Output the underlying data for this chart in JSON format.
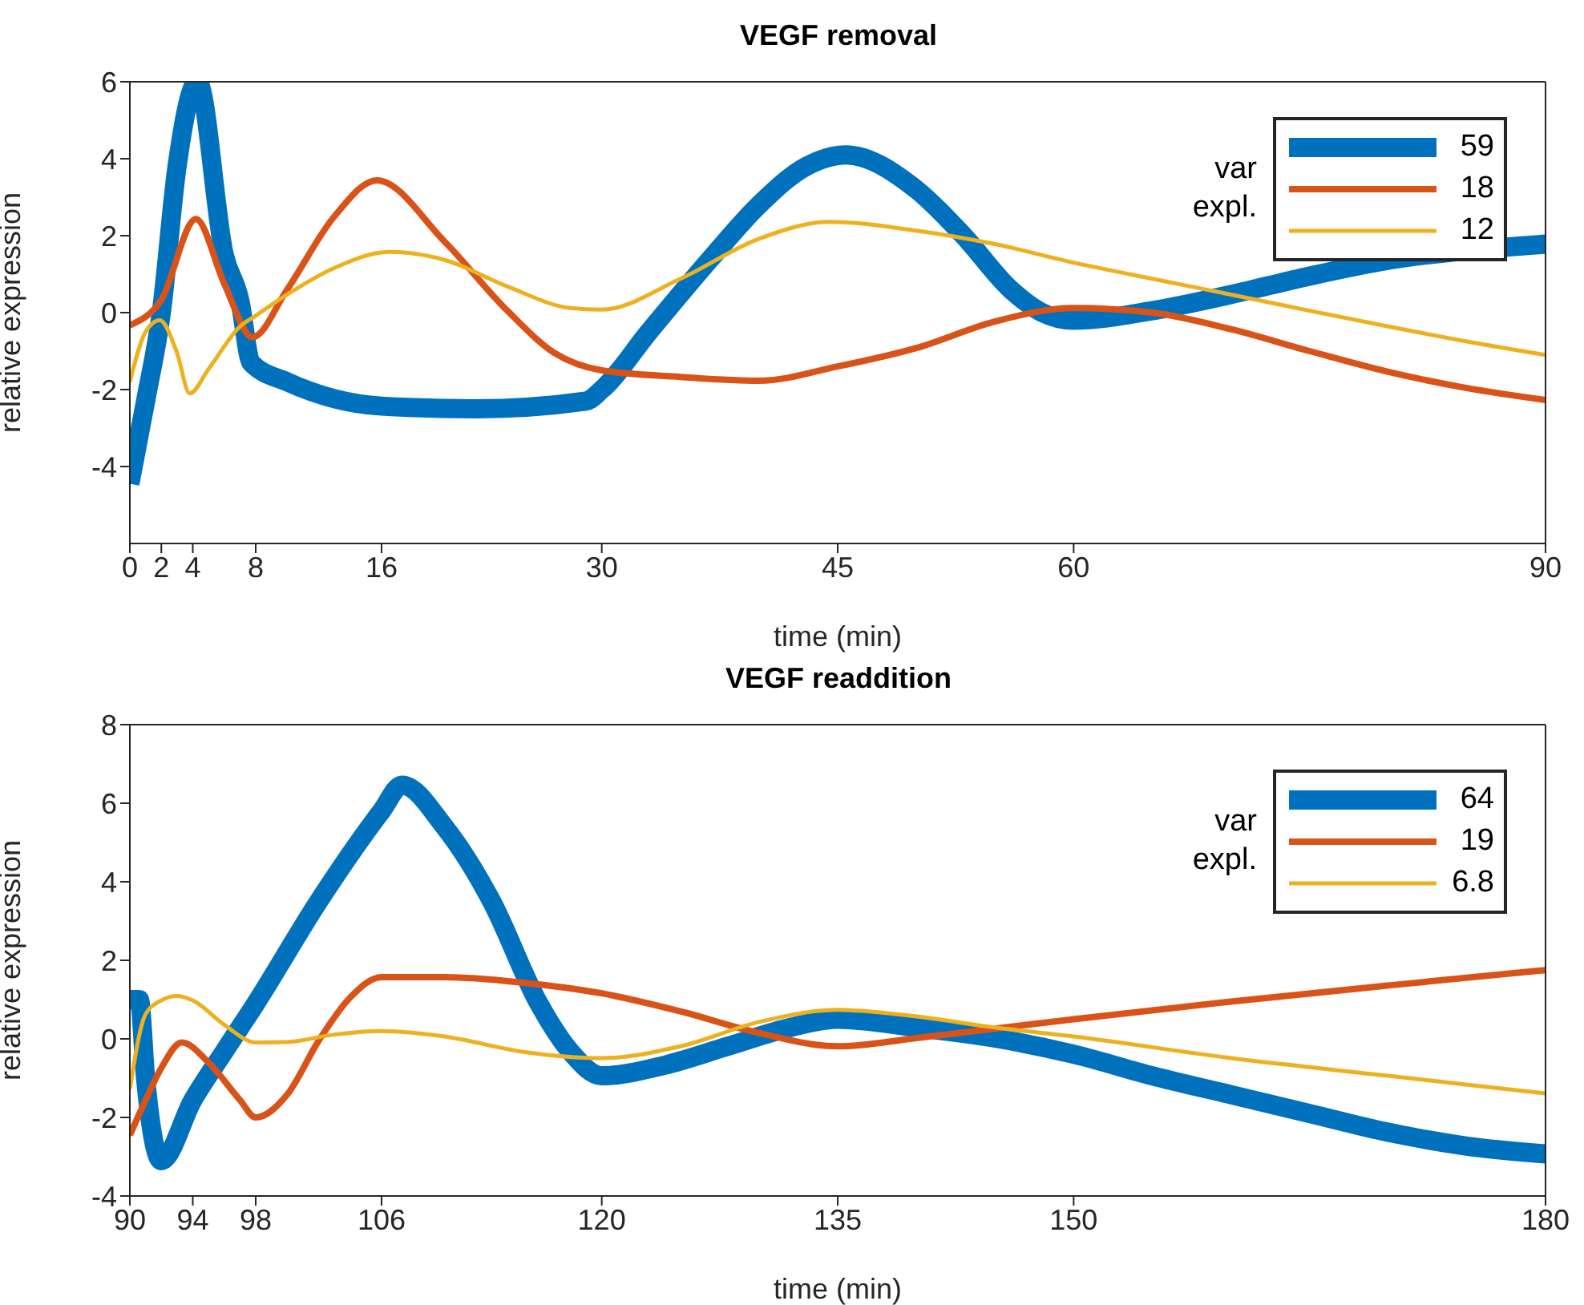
{
  "chart_data": [
    {
      "type": "line",
      "title": "VEGF removal",
      "xlabel": "time (min)",
      "ylabel": "relative expression",
      "legend_title": "var\nexpl.",
      "legend": "top right",
      "xlim": [
        0,
        90
      ],
      "xticks": [
        0,
        2,
        4,
        8,
        16,
        30,
        45,
        60,
        90
      ],
      "ylim": [
        -6,
        6
      ],
      "yticks": [
        -4,
        -2,
        0,
        2,
        4,
        6
      ],
      "series": [
        {
          "name": "59",
          "color": "#0072bd",
          "x": [
            0,
            1,
            2,
            3,
            4.3,
            6,
            7,
            7.7,
            10,
            16,
            22,
            29,
            30,
            33,
            37,
            40,
            43,
            45.5,
            50,
            53,
            56,
            58,
            60,
            65,
            70,
            75,
            80,
            88,
            90
          ],
          "values": [
            -4.45,
            -2.3,
            0,
            3.8,
            6,
            1.5,
            0.3,
            -1.3,
            -1.8,
            -2.43,
            -2.5,
            -2.3,
            -2.0,
            -0.5,
            1.44,
            2.8,
            3.8,
            4.1,
            3.2,
            2.0,
            0.6,
            0,
            -0.2,
            0.05,
            0.47,
            0.95,
            1.36,
            1.72,
            1.78
          ]
        },
        {
          "name": "18",
          "color": "#d95319",
          "x": [
            0,
            2,
            4.2,
            6,
            7.8,
            10,
            13,
            15.7,
            20,
            24,
            27,
            30,
            35,
            40,
            45,
            50,
            55,
            60,
            65,
            70,
            75,
            80,
            85,
            90
          ],
          "values": [
            -0.33,
            0.33,
            2.43,
            0.75,
            -0.64,
            0.6,
            2.5,
            3.44,
            1.85,
            0.05,
            -1.05,
            -1.5,
            -1.67,
            -1.77,
            -1.4,
            -0.92,
            -0.23,
            0.12,
            0,
            -0.43,
            -1,
            -1.54,
            -1.96,
            -2.27
          ]
        },
        {
          "name": "12",
          "color": "#edb120",
          "x": [
            0,
            1,
            1.9,
            3,
            3.8,
            5,
            7,
            8,
            10,
            13,
            16.5,
            20,
            24,
            28,
            30,
            35,
            40,
            44.5,
            50,
            55,
            60,
            65,
            70,
            75,
            80,
            85,
            90
          ],
          "values": [
            -1.8,
            -0.5,
            -0.2,
            -1.05,
            -2.1,
            -1.47,
            -0.36,
            -0.08,
            0.47,
            1.16,
            1.58,
            1.37,
            0.68,
            0.12,
            0.08,
            0.88,
            1.92,
            2.36,
            2.13,
            1.78,
            1.3,
            0.88,
            0.47,
            0.05,
            -0.36,
            -0.75,
            -1.1
          ]
        }
      ]
    },
    {
      "type": "line",
      "title": "VEGF readdition",
      "xlabel": "time (min)",
      "ylabel": "relative expression",
      "legend_title": "var\nexpl.",
      "legend": "top right",
      "xlim": [
        90,
        180
      ],
      "xticks": [
        90,
        94,
        98,
        106,
        120,
        135,
        150,
        180
      ],
      "ylim": [
        -4,
        8
      ],
      "yticks": [
        -4,
        -2,
        0,
        2,
        4,
        6,
        8
      ],
      "series": [
        {
          "name": "64",
          "color": "#0072bd",
          "x": [
            90,
            90.6,
            91,
            92,
            94,
            96,
            98,
            102,
            106,
            107.3,
            110,
            113,
            116,
            118,
            120,
            124,
            128,
            132,
            135,
            140,
            145,
            150,
            155,
            160,
            165,
            170,
            175,
            180
          ],
          "values": [
            1,
            1,
            -1,
            -3.1,
            -1.56,
            -0.32,
            0.9,
            3.5,
            5.8,
            6.46,
            5.4,
            3.5,
            0.9,
            -0.32,
            -0.94,
            -0.67,
            -0.19,
            0.29,
            0.5,
            0.29,
            0.02,
            -0.39,
            -0.94,
            -1.42,
            -1.9,
            -2.38,
            -2.73,
            -2.93
          ]
        },
        {
          "name": "19",
          "color": "#d95319",
          "x": [
            90,
            91,
            92,
            93.3,
            95,
            97,
            98,
            100,
            102,
            104,
            106,
            110,
            115,
            120,
            125,
            130,
            135,
            140,
            145,
            150,
            160,
            170,
            180
          ],
          "values": [
            -2.45,
            -1.56,
            -0.74,
            -0.09,
            -0.6,
            -1.56,
            -2.0,
            -1.42,
            -0.05,
            1.05,
            1.57,
            1.57,
            1.43,
            1.16,
            0.7,
            0.15,
            -0.19,
            0.02,
            0.26,
            0.5,
            0.95,
            1.36,
            1.75
          ]
        },
        {
          "name": "6.8",
          "color": "#edb120",
          "x": [
            90,
            91,
            92,
            93,
            94,
            96,
            98,
            100,
            103,
            106,
            110,
            115,
            120,
            125,
            130,
            135,
            140,
            145,
            150,
            160,
            170,
            180
          ],
          "values": [
            -1.28,
            0.63,
            0.98,
            1.09,
            0.98,
            0.36,
            -0.09,
            -0.08,
            0.11,
            0.2,
            0.06,
            -0.33,
            -0.49,
            -0.19,
            0.43,
            0.74,
            0.57,
            0.29,
            0.06,
            -0.49,
            -0.94,
            -1.39
          ]
        }
      ]
    }
  ]
}
